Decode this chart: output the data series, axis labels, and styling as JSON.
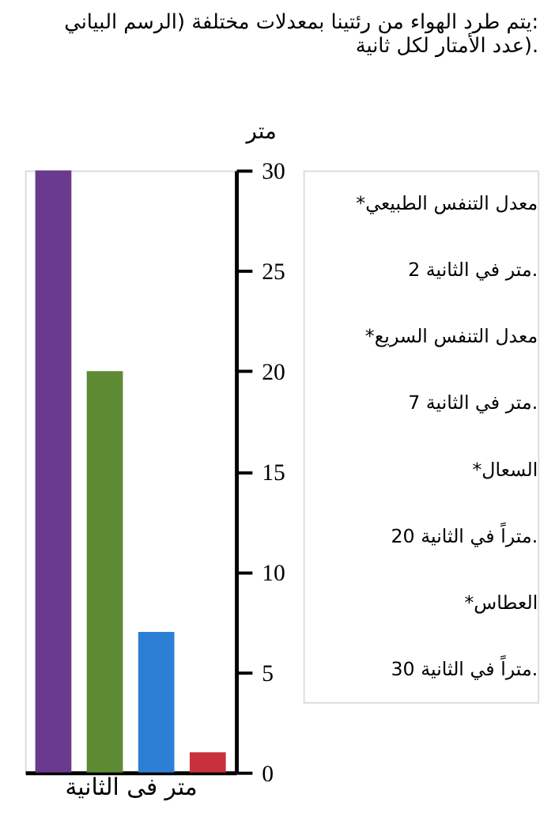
{
  "chart_data": {
    "type": "bar",
    "title": [
      "يتم طرد الهواء من رئتينا بمعدلات مختلفة (الرسم البياني:",
      "عدد الأمتار لكل ثانية)."
    ],
    "categories": [
      null,
      null,
      null,
      null
    ],
    "values": [
      30,
      20,
      7,
      1
    ],
    "colors": [
      "#6a3a8e",
      "#5f8a34",
      "#2d7fd6",
      "#c8303c"
    ],
    "ylabel": "متر",
    "xlabel": "متر فى الثانية",
    "ylim": [
      0,
      30
    ],
    "yticks": [
      0,
      5,
      10,
      15,
      20,
      25,
      30
    ],
    "grid": false,
    "legend": false,
    "annotations": [
      "*معدل التنفس الطبيعي",
      "2 متر في الثانية.",
      "*معدل التنفس السريع",
      "7 متر في الثانية.",
      "*السعال",
      "20 متراً في الثانية.",
      "*العطاس",
      "30 متراً في الثانية."
    ]
  }
}
